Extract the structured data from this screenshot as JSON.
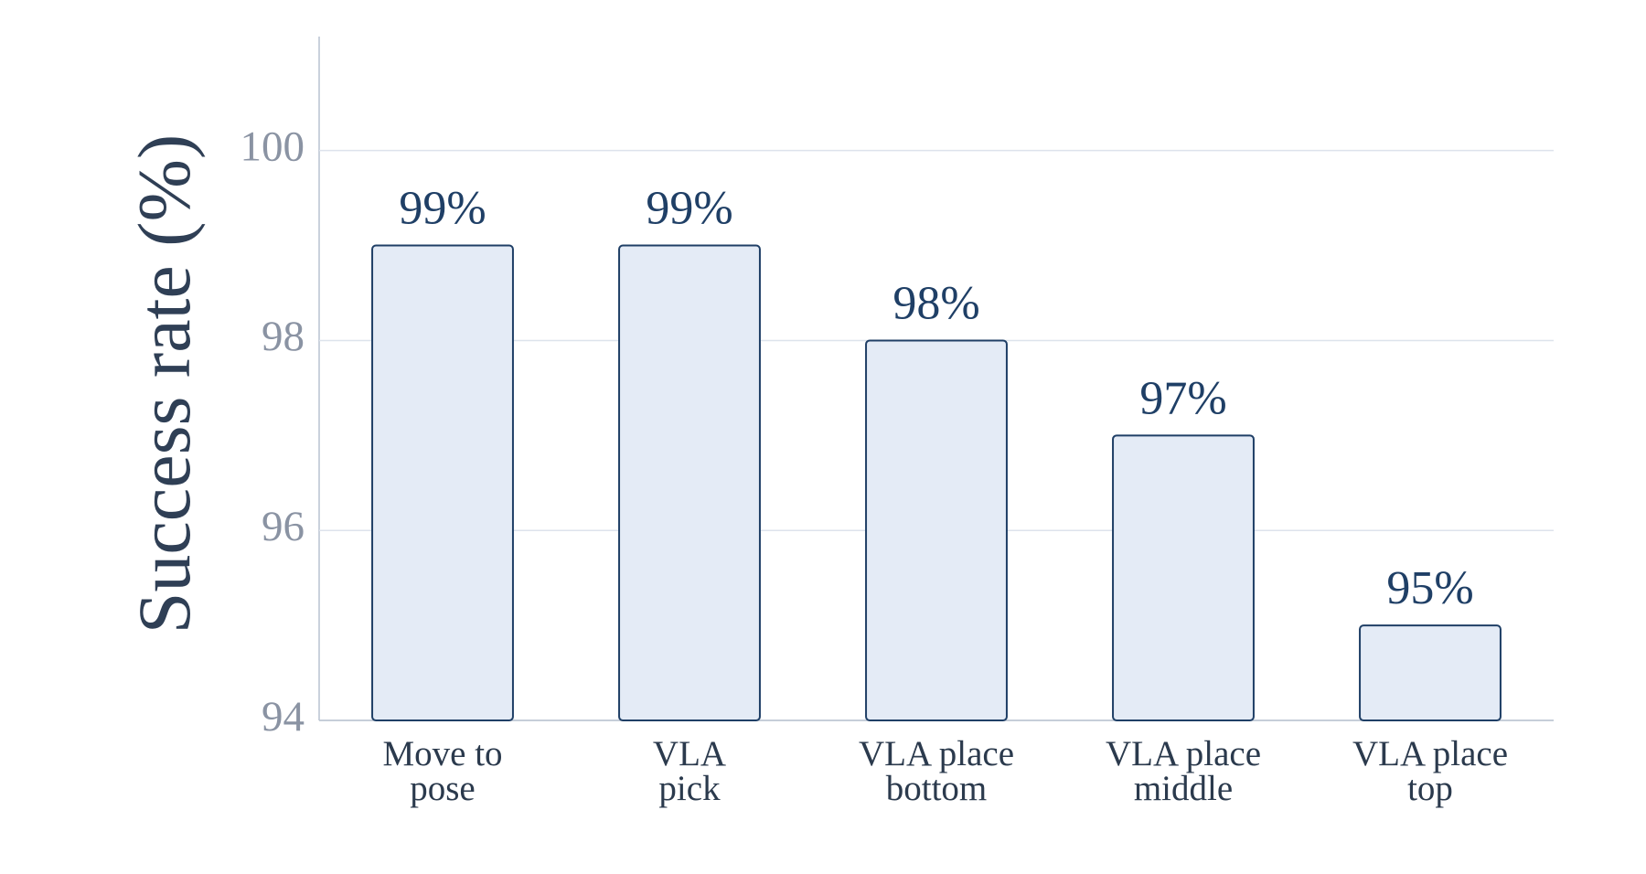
{
  "chart_data": {
    "type": "bar",
    "y_label": "Success rate (%)",
    "categories": [
      "Move to\npose",
      "VLA\npick",
      "VLA place\nbottom",
      "VLA place\nmiddle",
      "VLA place\ntop"
    ],
    "values": [
      99,
      99,
      98,
      97,
      95
    ],
    "value_labels": [
      "99%",
      "99%",
      "98%",
      "97%",
      "95%"
    ],
    "color": "#e4ebf6",
    "edge_color": "#1f3f66",
    "ylim": [
      94,
      101.2
    ],
    "yticks": [
      94,
      96,
      98,
      100
    ],
    "grid": true
  }
}
